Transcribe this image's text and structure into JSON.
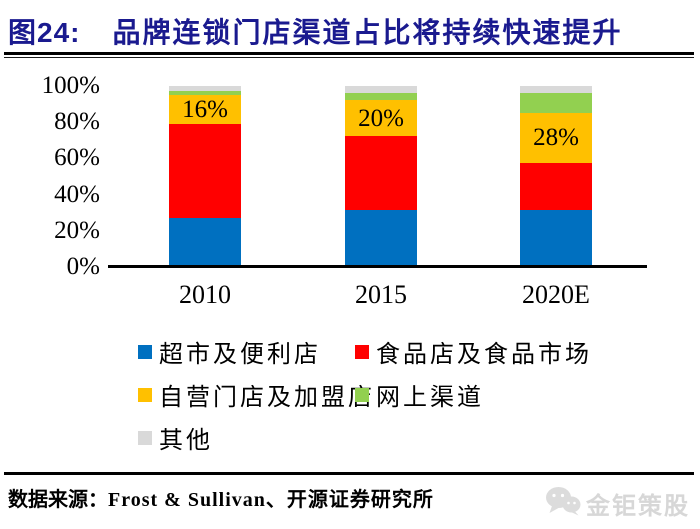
{
  "figure": {
    "label": "图24:",
    "title": "品牌连锁门店渠道占比将持续快速提升"
  },
  "chart_data": {
    "type": "bar",
    "stacked": true,
    "title": "品牌连锁门店渠道占比将持续快速提升",
    "categories": [
      "2010",
      "2015",
      "2020E"
    ],
    "series": [
      {
        "key": "supermarket-convenience",
        "name": "超市及便利店",
        "color": "#0070C0",
        "values": [
          26,
          31,
          31
        ]
      },
      {
        "key": "food-stores-markets",
        "name": "食品店及食品市场",
        "color": "#FF0000",
        "values": [
          53,
          41,
          26
        ]
      },
      {
        "key": "owned-franchise-stores",
        "name": "自营门店及加盟店",
        "color": "#FFC000",
        "values": [
          16,
          20,
          28
        ],
        "data_labels": [
          "16%",
          "20%",
          "28%"
        ]
      },
      {
        "key": "online-channel",
        "name": "网上渠道",
        "color": "#92D050",
        "values": [
          2,
          4,
          11
        ]
      },
      {
        "key": "others",
        "name": "其他",
        "color": "#D9D9D9",
        "values": [
          3,
          4,
          4
        ]
      }
    ],
    "yticks": [
      "0%",
      "20%",
      "40%",
      "60%",
      "80%",
      "100%"
    ],
    "ylim": [
      0,
      100
    ],
    "xlabel": "",
    "ylabel": "",
    "grid": false,
    "legend_position": "bottom-left"
  },
  "source": {
    "label": "数据来源：",
    "text": "Frost & Sullivan、开源证券研究所"
  },
  "watermark": {
    "icon": "wechat-icon",
    "text": "金钜策股"
  },
  "colors": {
    "title_navy": "#1a1a8f",
    "axis_black": "#000000",
    "watermark_gray": "#d7d7d7"
  }
}
